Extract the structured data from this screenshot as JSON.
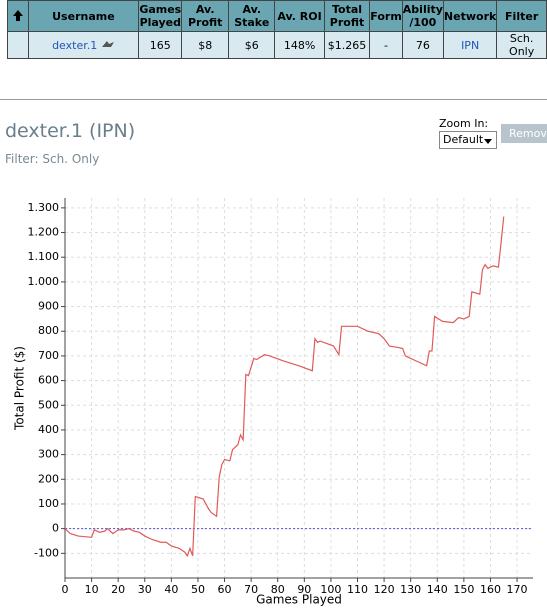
{
  "table": {
    "header": [
      "Username",
      "Games Played",
      "Av. Profit",
      "Av. Stake",
      "Av. ROI",
      "Total Profit",
      "Form",
      "Ability /100",
      "Network",
      "Filter"
    ],
    "rows": [
      [
        "dexter.1",
        "165",
        "$8",
        "$6",
        "148%",
        "$1.265",
        "-",
        "76",
        "IPN",
        "Sch. Only"
      ]
    ]
  },
  "header": {
    "title": "dexter.1 (IPN)",
    "subtitle": "Filter: Sch. Only",
    "zoom_label": "Zoom In:",
    "zoom_value": "Default",
    "button": "Remove"
  },
  "chart_data": {
    "type": "line",
    "x_label": "Games Played",
    "y_label": "Total Profit ($)",
    "color": "#e05a5a",
    "grid": true,
    "x": [
      0,
      1,
      2,
      5,
      10,
      11,
      13,
      15,
      16,
      18,
      20,
      22,
      24,
      26,
      28,
      30,
      33,
      36,
      38,
      40,
      43,
      45,
      46,
      47,
      48,
      49,
      52,
      54,
      55,
      57,
      58,
      59,
      60,
      62,
      63,
      65,
      66,
      67,
      68,
      69,
      71,
      72,
      75,
      77,
      82,
      88,
      93,
      94,
      95,
      96,
      101,
      103,
      104,
      110,
      114,
      118,
      120,
      122,
      125,
      127,
      128,
      132,
      136,
      137,
      138,
      139,
      142,
      146,
      148,
      150,
      152,
      153,
      156,
      157,
      158,
      159,
      161,
      163,
      164,
      165
    ],
    "values": [
      0,
      -10,
      -20,
      -30,
      -35,
      -5,
      -15,
      -10,
      0,
      -20,
      -5,
      -5,
      0,
      -10,
      -15,
      -30,
      -45,
      -55,
      -55,
      -70,
      -80,
      -95,
      -110,
      -80,
      -110,
      130,
      120,
      80,
      65,
      50,
      210,
      260,
      280,
      275,
      320,
      340,
      380,
      360,
      625,
      620,
      690,
      685,
      705,
      700,
      680,
      660,
      640,
      770,
      755,
      760,
      740,
      705,
      820,
      820,
      800,
      790,
      770,
      740,
      735,
      730,
      700,
      680,
      660,
      720,
      720,
      860,
      840,
      835,
      855,
      850,
      860,
      960,
      950,
      1050,
      1070,
      1055,
      1065,
      1060,
      1160,
      1265
    ],
    "xlim": [
      0,
      176
    ],
    "ylim": [
      -200,
      1340
    ],
    "xticks": [
      0,
      10,
      20,
      30,
      40,
      50,
      60,
      70,
      80,
      90,
      100,
      110,
      120,
      130,
      140,
      150,
      160,
      170
    ],
    "yticks": [
      -100,
      0,
      100,
      200,
      300,
      400,
      500,
      600,
      700,
      800,
      900,
      {
        "value": 1000,
        "label": "1.000"
      },
      {
        "value": 1100,
        "label": "1.100"
      },
      {
        "value": 1200,
        "label": "1.200"
      },
      {
        "value": 1300,
        "label": "1.300"
      }
    ]
  }
}
